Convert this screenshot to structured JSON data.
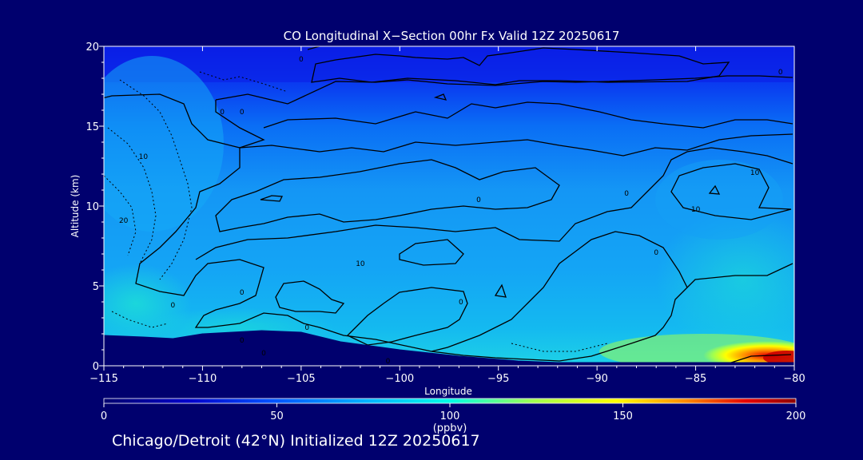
{
  "chart_data": {
    "type": "heatmap",
    "title": "CO Longitudinal X−Section 00hr  Fx Valid 12Z 20250617",
    "xlabel": "Longitude",
    "ylabel": "Altitude (km)",
    "xlim": [
      -115,
      -80
    ],
    "ylim": [
      0,
      20
    ],
    "x_ticks": [
      -115,
      -110,
      -105,
      -100,
      -95,
      -90,
      -85,
      -80
    ],
    "x_tick_labels": [
      "−115",
      "−110",
      "−105",
      "−100",
      "−95",
      "−90",
      "−85",
      "−80"
    ],
    "y_ticks": [
      0,
      5,
      10,
      15,
      20
    ],
    "y_tick_labels": [
      "0",
      "5",
      "10",
      "15",
      "20"
    ],
    "colorbar": {
      "min": 0,
      "max": 200,
      "ticks": [
        0,
        50,
        100,
        150,
        200
      ],
      "tick_labels": [
        "0",
        "50",
        "100",
        "150",
        "200"
      ],
      "unit_label": "(ppbv)",
      "colors": [
        "#00006e",
        "#0000c8",
        "#0050ff",
        "#00b4ff",
        "#00ffe6",
        "#a0ff50",
        "#ffff00",
        "#ff8c00",
        "#e60000",
        "#8c0000"
      ]
    },
    "terrain": {
      "color": "#00006e",
      "longitude": [
        -115,
        -113,
        -111.5,
        -110,
        -107,
        -105,
        -103,
        -100,
        -97,
        -94,
        -92,
        -90,
        -88,
        -85,
        -83,
        -80
      ],
      "altitude_km": [
        1.9,
        1.8,
        1.7,
        2.0,
        2.2,
        2.1,
        1.5,
        1.0,
        0.6,
        0.3,
        0.2,
        0.2,
        0.2,
        0.2,
        0.2,
        0.2
      ]
    },
    "contour_labels": [
      {
        "text": "0",
        "lon": -106.9,
        "alt": 0.8
      },
      {
        "text": "0",
        "lon": -104.7,
        "alt": 2.4
      },
      {
        "text": "0",
        "lon": -100.6,
        "alt": 0.3
      },
      {
        "text": "0",
        "lon": -96.9,
        "alt": 4.0
      },
      {
        "text": "0",
        "lon": -108.0,
        "alt": 1.6
      },
      {
        "text": "0",
        "lon": -111.5,
        "alt": 3.8
      },
      {
        "text": "0",
        "lon": -108.0,
        "alt": 4.6
      },
      {
        "text": "10",
        "lon": -102.0,
        "alt": 6.4
      },
      {
        "text": "0",
        "lon": -96.0,
        "alt": 10.4
      },
      {
        "text": "0",
        "lon": -87.0,
        "alt": 7.1
      },
      {
        "text": "0",
        "lon": -88.5,
        "alt": 10.8
      },
      {
        "text": "10",
        "lon": -85.0,
        "alt": 9.8
      },
      {
        "text": "10",
        "lon": -82.0,
        "alt": 12.1
      },
      {
        "text": "0",
        "lon": -109.0,
        "alt": 15.9
      },
      {
        "text": "0",
        "lon": -108.0,
        "alt": 15.9
      },
      {
        "text": "10",
        "lon": -113.0,
        "alt": 13.1
      },
      {
        "text": "20",
        "lon": -114.0,
        "alt": 9.1
      },
      {
        "text": "0",
        "lon": -105.0,
        "alt": 19.2
      },
      {
        "text": "0",
        "lon": -80.7,
        "alt": 18.4
      }
    ]
  },
  "footer": "Chicago/Detroit (42°N) Initialized 12Z 20250617"
}
